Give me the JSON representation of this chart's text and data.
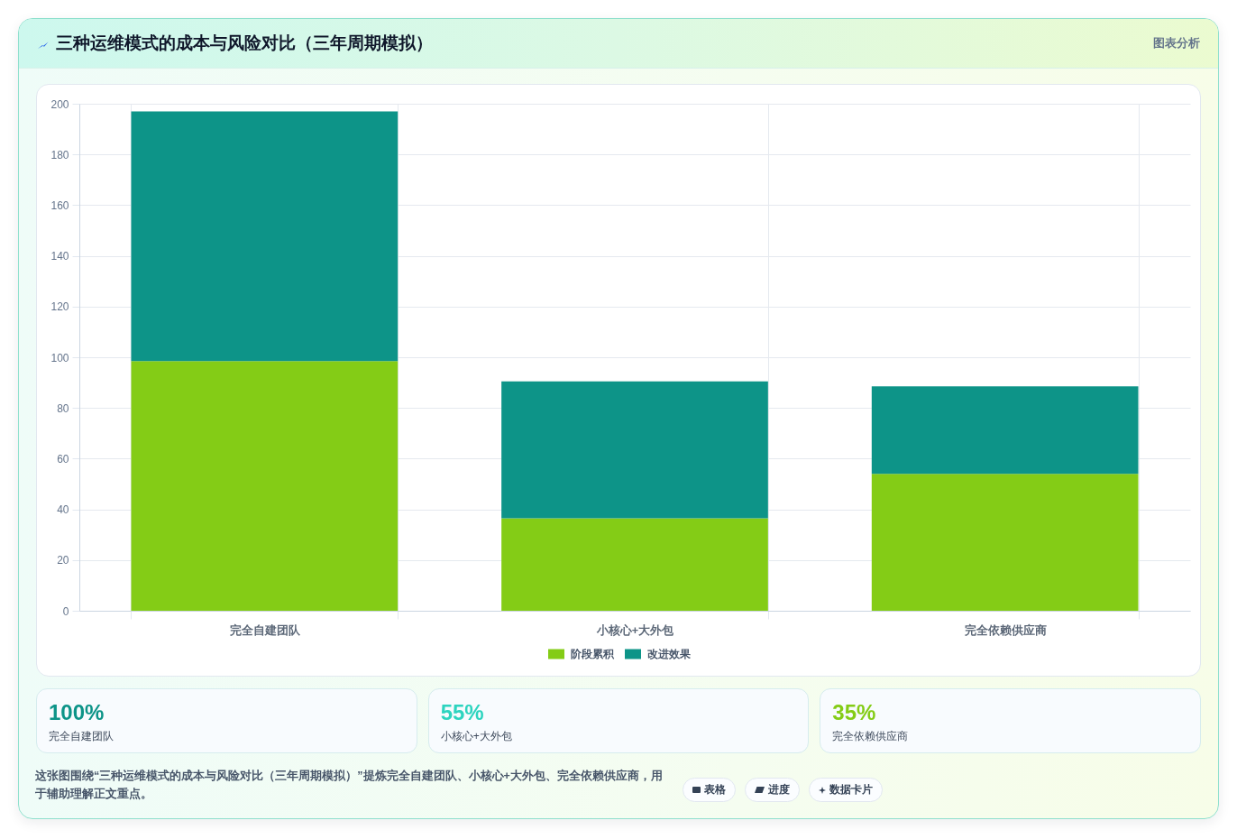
{
  "chart_data": [
    {
      "type": "bar",
      "title": "三种运维模式的成本与风险对比（三年周期模拟）",
      "categories": [
        "完全自建团队",
        "小核心+大外包",
        "完全依赖供应商"
      ],
      "series": [
        {
          "name": "阶段累积",
          "color": "#84cc16",
          "values": [
            98.5,
            36.5,
            54
          ]
        },
        {
          "name": "改进效果",
          "color": "#0d9488",
          "values": [
            98.5,
            54,
            34.5
          ]
        }
      ],
      "stacked": true,
      "ylim": [
        0,
        200
      ],
      "yticks": [
        0,
        20,
        40,
        60,
        80,
        100,
        120,
        140,
        160,
        180,
        200
      ],
      "grid": true,
      "legend": "bottom",
      "annotations": [
        "图表分析"
      ]
    },
    {
      "type": "other",
      "categories": [
        "完全自建团队",
        "小核心+大外包",
        "完全依赖供应商"
      ],
      "value_labels": [
        "100%",
        "55%",
        "35%"
      ],
      "annotations": [
        "这张图围绕“三种运维模式的成本与风险对比（三年周期模拟）”提炼完全自建团队、小核心+大外包、完全依赖供应商，用于辅助理解正文重点。",
        "表格",
        "进度",
        "数据卡片"
      ]
    }
  ]
}
